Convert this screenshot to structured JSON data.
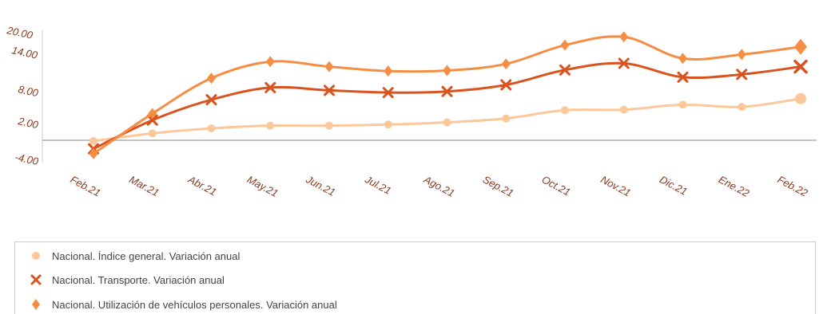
{
  "chart_data": {
    "type": "line",
    "categories": [
      "Feb.21",
      "Mar.21",
      "Abr.21",
      "May.21",
      "Jun.21",
      "Jul.21",
      "Ago.21",
      "Sep.21",
      "Oct.21",
      "Nov.21",
      "Dic.21",
      "Ene.22",
      "Feb.22"
    ],
    "y_ticks": [
      "20.00",
      "14.00",
      "8.00",
      "2.00",
      "-4.00"
    ],
    "ylim": [
      -4,
      20
    ],
    "grid": false,
    "legend_position": "bottom",
    "series": [
      {
        "name": "Nacional. Índice general. Variación anual",
        "color": "#fcc89a",
        "marker": "circle",
        "values": [
          -0.1,
          1.3,
          2.2,
          2.7,
          2.7,
          2.9,
          3.3,
          4.0,
          5.5,
          5.6,
          6.5,
          6.1,
          7.6
        ]
      },
      {
        "name": "Nacional. Transporte. Variación anual",
        "color": "#d9531e",
        "marker": "x",
        "values": [
          -1.5,
          3.7,
          7.4,
          9.6,
          9.1,
          8.7,
          8.9,
          10.1,
          12.8,
          14.0,
          11.5,
          12.0,
          13.4
        ]
      },
      {
        "name": "Nacional. Utilización de vehículos personales. Variación anual",
        "color": "#f58d45",
        "marker": "diamond",
        "values": [
          -2.4,
          4.9,
          11.3,
          14.3,
          13.4,
          12.6,
          12.7,
          13.9,
          17.3,
          18.8,
          14.9,
          15.6,
          17.0
        ]
      }
    ]
  }
}
